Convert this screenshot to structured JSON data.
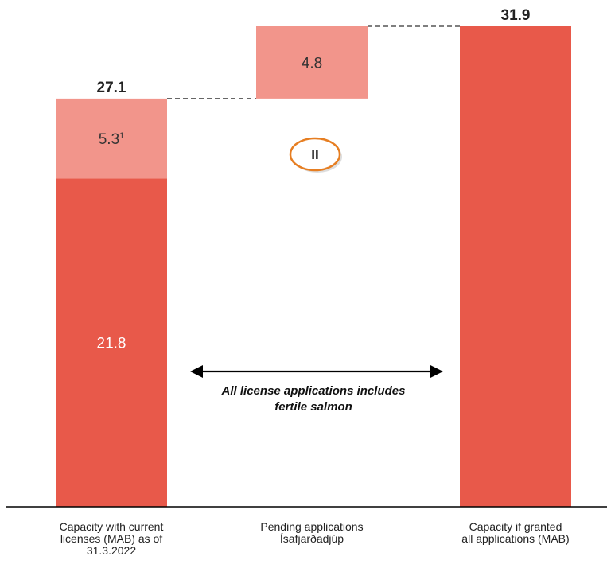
{
  "chart_data": {
    "type": "bar",
    "subtype": "waterfall",
    "categories": [
      "Capacity with current licenses (MAB) as of 31.3.2022",
      "Pending applications Ísafjarðadjúp",
      "Capacity if granted all applications (MAB)"
    ],
    "category_lines": [
      [
        "Capacity with current",
        "licenses (MAB) as of",
        "31.3.2022"
      ],
      [
        "Pending applications",
        "Ísafjarðadjúp"
      ],
      [
        "Capacity if granted",
        "all applications (MAB)"
      ]
    ],
    "bars": [
      {
        "segments": [
          {
            "value": 21.8,
            "label": "21.8",
            "style": "dark"
          },
          {
            "value": 5.3,
            "label": "5.3",
            "footnote": "1",
            "style": "light"
          }
        ],
        "total_label": "27.1"
      },
      {
        "base": 27.1,
        "segments": [
          {
            "value": 4.8,
            "label": "4.8",
            "style": "light"
          }
        ]
      },
      {
        "segments": [
          {
            "value": 31.9,
            "style": "dark"
          }
        ],
        "total_label": "31.9"
      }
    ],
    "ylim": [
      0,
      31.9
    ],
    "grid": false,
    "legend": "none",
    "annotation_lines": [
      "All license applications includes",
      "fertile salmon"
    ],
    "badge": "II"
  },
  "colors": {
    "dark": "#E8594A",
    "light": "#F2958B",
    "axis": "#000000",
    "connector": "#333333",
    "badge_stroke": "#E67E22"
  }
}
